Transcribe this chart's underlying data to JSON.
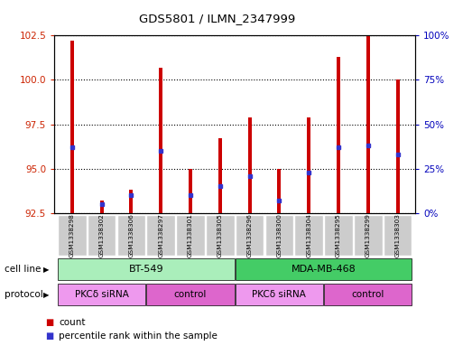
{
  "title": "GDS5801 / ILMN_2347999",
  "samples": [
    "GSM1338298",
    "GSM1338302",
    "GSM1338306",
    "GSM1338297",
    "GSM1338301",
    "GSM1338305",
    "GSM1338296",
    "GSM1338300",
    "GSM1338304",
    "GSM1338295",
    "GSM1338299",
    "GSM1338303"
  ],
  "bar_tops": [
    102.2,
    93.2,
    93.8,
    100.7,
    95.0,
    96.7,
    97.9,
    95.0,
    97.9,
    101.3,
    102.5,
    100.0
  ],
  "bar_bottom": 92.5,
  "blue_values": [
    96.2,
    93.0,
    93.5,
    96.0,
    93.5,
    94.0,
    94.6,
    93.2,
    94.8,
    96.2,
    96.3,
    95.8
  ],
  "ylim_left": [
    92.5,
    102.5
  ],
  "ylim_right": [
    0,
    100
  ],
  "yticks_left": [
    92.5,
    95.0,
    97.5,
    100.0,
    102.5
  ],
  "yticks_right": [
    0,
    25,
    50,
    75,
    100
  ],
  "ytick_labels_right": [
    "0%",
    "25%",
    "50%",
    "75%",
    "100%"
  ],
  "bar_color": "#cc0000",
  "blue_color": "#3333cc",
  "plot_bg": "#ffffff",
  "cell_line_groups": [
    {
      "label": "BT-549",
      "start": 0,
      "end": 5,
      "color": "#aaeebb"
    },
    {
      "label": "MDA-MB-468",
      "start": 6,
      "end": 11,
      "color": "#44cc66"
    }
  ],
  "protocol_groups": [
    {
      "label": "PKCδ siRNA",
      "start": 0,
      "end": 2,
      "color": "#ee99ee"
    },
    {
      "label": "control",
      "start": 3,
      "end": 5,
      "color": "#dd66cc"
    },
    {
      "label": "PKCδ siRNA",
      "start": 6,
      "end": 8,
      "color": "#ee99ee"
    },
    {
      "label": "control",
      "start": 9,
      "end": 11,
      "color": "#dd66cc"
    }
  ],
  "tick_label_color": "#cc2200",
  "right_tick_color": "#0000bb",
  "cell_line_label": "cell line",
  "protocol_label": "protocol",
  "legend_count": "count",
  "legend_percentile": "percentile rank within the sample",
  "sample_box_color": "#cccccc"
}
